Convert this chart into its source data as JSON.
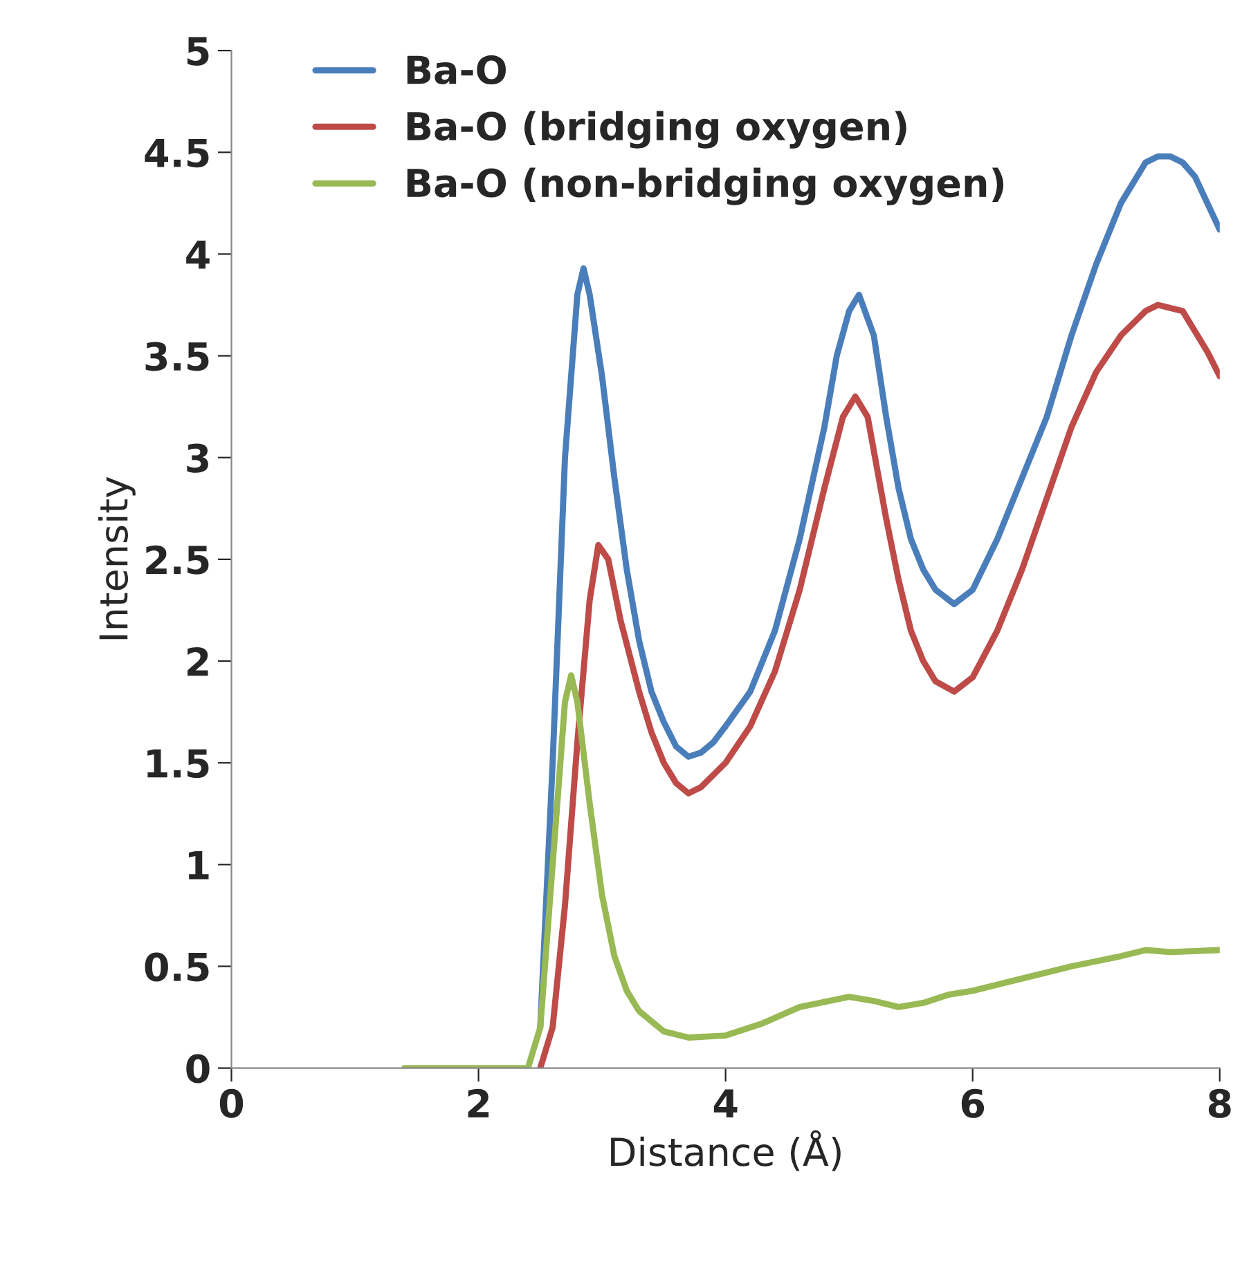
{
  "chart_data": {
    "type": "line",
    "xlabel": "Distance (Å)",
    "ylabel": "Intensity",
    "xlim": [
      0,
      8
    ],
    "xticks": [
      0,
      2,
      4,
      6,
      8
    ],
    "ylim": [
      0,
      5
    ],
    "yticks": [
      0,
      0.5,
      1,
      1.5,
      2,
      2.5,
      3,
      3.5,
      4,
      4.5,
      5
    ],
    "grid": false,
    "legend": "top left",
    "marker": "none",
    "line_style": "solid",
    "series": [
      {
        "name": "Ba-O",
        "color": "#4a7ebb",
        "x": [
          2.5,
          2.6,
          2.7,
          2.8,
          2.85,
          2.9,
          3.0,
          3.1,
          3.2,
          3.3,
          3.4,
          3.5,
          3.6,
          3.7,
          3.8,
          3.9,
          4.0,
          4.2,
          4.4,
          4.6,
          4.8,
          4.9,
          5.0,
          5.08,
          5.2,
          5.3,
          5.4,
          5.5,
          5.6,
          5.7,
          5.85,
          6.0,
          6.2,
          6.4,
          6.6,
          6.8,
          7.0,
          7.2,
          7.4,
          7.5,
          7.6,
          7.7,
          7.8,
          7.9,
          8.0
        ],
        "values": [
          0.2,
          1.5,
          3.0,
          3.8,
          3.93,
          3.8,
          3.4,
          2.9,
          2.45,
          2.1,
          1.85,
          1.7,
          1.58,
          1.53,
          1.55,
          1.6,
          1.68,
          1.85,
          2.15,
          2.6,
          3.15,
          3.5,
          3.72,
          3.8,
          3.6,
          3.2,
          2.85,
          2.6,
          2.45,
          2.35,
          2.28,
          2.35,
          2.6,
          2.9,
          3.2,
          3.6,
          3.95,
          4.25,
          4.45,
          4.48,
          4.48,
          4.45,
          4.38,
          4.25,
          4.12
        ]
      },
      {
        "name": "Ba-O (bridging oxygen)",
        "color": "#be4b48",
        "x": [
          2.5,
          2.6,
          2.7,
          2.8,
          2.9,
          2.97,
          3.05,
          3.15,
          3.3,
          3.4,
          3.5,
          3.6,
          3.7,
          3.8,
          4.0,
          4.2,
          4.4,
          4.6,
          4.8,
          4.95,
          5.05,
          5.15,
          5.3,
          5.4,
          5.5,
          5.6,
          5.7,
          5.85,
          6.0,
          6.2,
          6.4,
          6.6,
          6.8,
          7.0,
          7.2,
          7.4,
          7.5,
          7.7,
          7.8,
          7.9,
          8.0
        ],
        "values": [
          0,
          0.2,
          0.8,
          1.6,
          2.3,
          2.57,
          2.5,
          2.2,
          1.85,
          1.65,
          1.5,
          1.4,
          1.35,
          1.38,
          1.5,
          1.68,
          1.95,
          2.35,
          2.85,
          3.2,
          3.3,
          3.2,
          2.7,
          2.4,
          2.15,
          2.0,
          1.9,
          1.85,
          1.92,
          2.15,
          2.45,
          2.8,
          3.15,
          3.42,
          3.6,
          3.72,
          3.75,
          3.72,
          3.62,
          3.52,
          3.4
        ]
      },
      {
        "name": "Ba-O (non-bridging oxygen)",
        "color": "#98b954",
        "x": [
          1.4,
          2.0,
          2.4,
          2.5,
          2.6,
          2.7,
          2.75,
          2.8,
          2.9,
          3.0,
          3.1,
          3.2,
          3.3,
          3.5,
          3.7,
          4.0,
          4.3,
          4.6,
          5.0,
          5.2,
          5.4,
          5.6,
          5.8,
          6.0,
          6.4,
          6.8,
          7.2,
          7.4,
          7.6,
          8.0
        ],
        "values": [
          0,
          0,
          0,
          0.2,
          1.0,
          1.8,
          1.93,
          1.8,
          1.3,
          0.85,
          0.55,
          0.38,
          0.28,
          0.18,
          0.15,
          0.16,
          0.22,
          0.3,
          0.35,
          0.33,
          0.3,
          0.32,
          0.36,
          0.38,
          0.44,
          0.5,
          0.55,
          0.58,
          0.57,
          0.58
        ]
      }
    ]
  }
}
